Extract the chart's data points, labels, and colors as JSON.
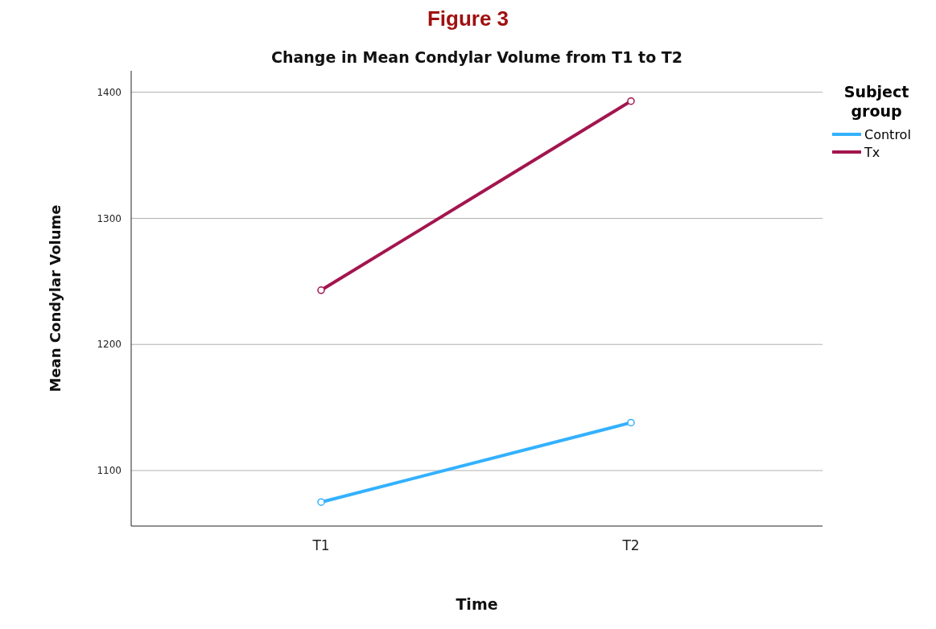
{
  "chart_data": {
    "type": "line",
    "title": "Change in Mean Condylar Volume from T1 to T2",
    "xlabel": "Time",
    "ylabel": "Mean Condylar Volume",
    "legend_title": "Subject group",
    "annotations": [
      "Figure 3"
    ],
    "categories": [
      "T1",
      "T2"
    ],
    "series": [
      {
        "name": "Control",
        "color": "#33b1ff",
        "values": [
          1075,
          1138
        ]
      },
      {
        "name": "Tx",
        "color": "#a3154f",
        "values": [
          1243,
          1393
        ]
      }
    ],
    "ylim": [
      1056,
      1417
    ],
    "yticks": [
      1100,
      1200,
      1300,
      1400
    ],
    "grid": "y",
    "legend": "top right",
    "marker": "circle",
    "line_style": "solid"
  }
}
